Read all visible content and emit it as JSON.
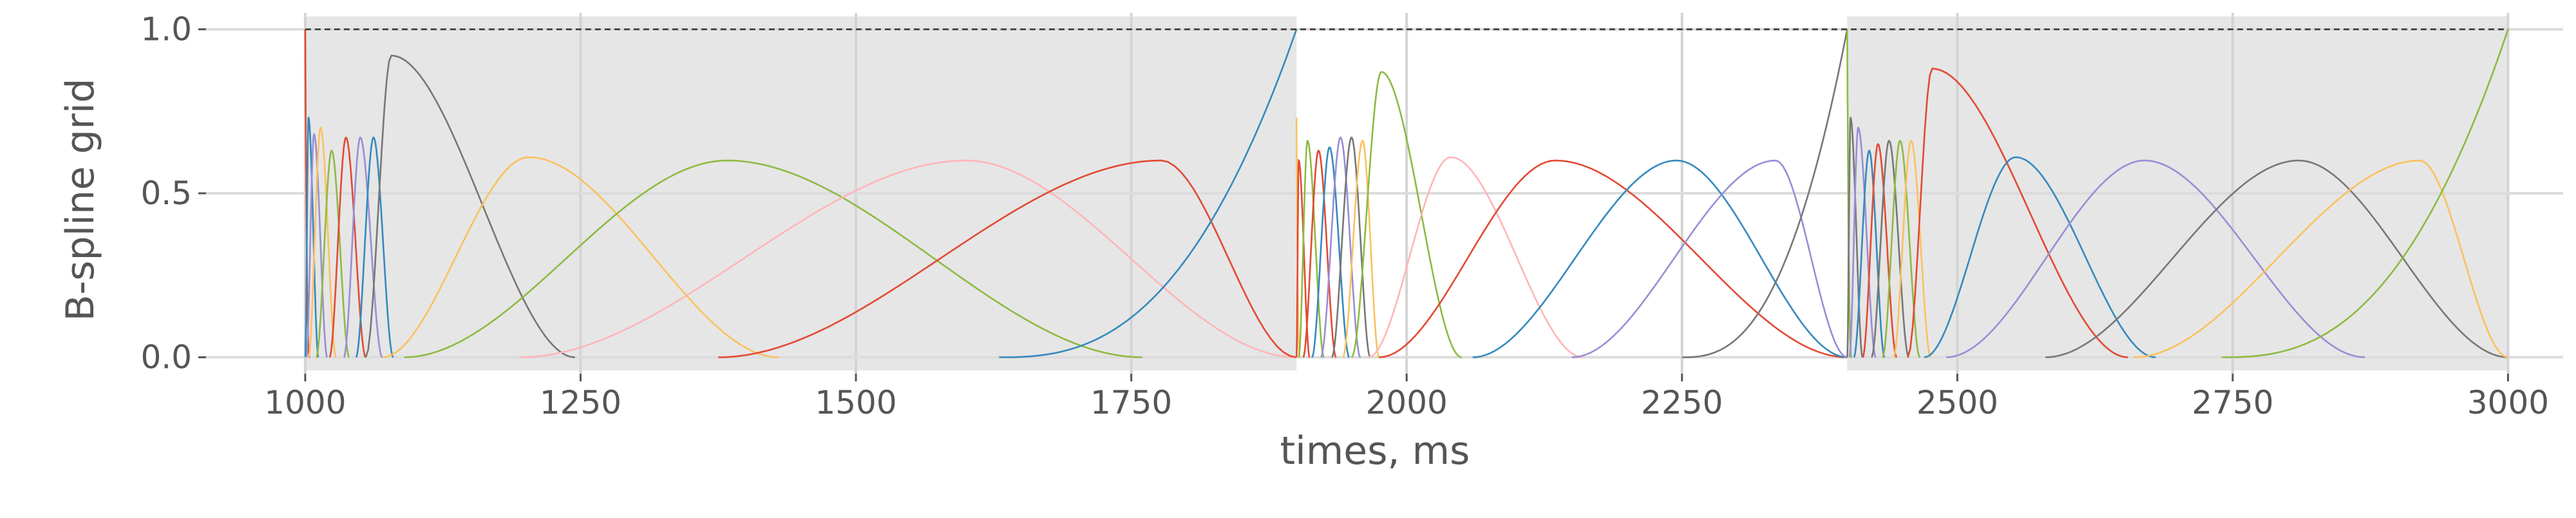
{
  "chart_data": {
    "type": "line",
    "title": "",
    "xlabel": "times, ms",
    "ylabel": "B-spline grid",
    "xlim": [
      910,
      3050
    ],
    "ylim": [
      -0.05,
      1.05
    ],
    "x_ticks": [
      1000,
      1250,
      1500,
      1750,
      2000,
      2250,
      2500,
      2750,
      3000
    ],
    "x_tick_labels": [
      "1000",
      "1250",
      "1500",
      "1750",
      "2000",
      "2250",
      "2500",
      "2750",
      "3000"
    ],
    "y_ticks": [
      0.0,
      0.5,
      1.0
    ],
    "y_tick_labels": [
      "0.0",
      "0.5",
      "1.0"
    ],
    "grid": true,
    "style": "ggplot-like",
    "reference_line": {
      "y": 1.0,
      "x": [
        1000,
        3000
      ],
      "style": "dashed",
      "color": "#333333"
    },
    "shaded_regions": [
      {
        "x": [
          1000,
          1900
        ],
        "color": "#e6e6e6"
      },
      {
        "x": [
          2400,
          3000
        ],
        "color": "#e6e6e6"
      }
    ],
    "colors": [
      "#e24a33",
      "#348abd",
      "#988ed5",
      "#777777",
      "#fbc15e",
      "#8eba42",
      "#ffb5b8"
    ],
    "series": [
      {
        "segment": 1,
        "color": "#e24a33",
        "shape": "start",
        "start": 1000,
        "end": 1004,
        "peak": 1000,
        "height": 1.0
      },
      {
        "segment": 1,
        "color": "#348abd",
        "shape": "bump",
        "start": 1000,
        "end": 1012,
        "peak": 1003,
        "height": 0.73
      },
      {
        "segment": 1,
        "color": "#988ed5",
        "shape": "bump",
        "start": 1001,
        "end": 1020,
        "peak": 1008,
        "height": 0.68
      },
      {
        "segment": 1,
        "color": "#fbc15e",
        "shape": "bump",
        "start": 1003,
        "end": 1028,
        "peak": 1014,
        "height": 0.7
      },
      {
        "segment": 1,
        "color": "#8eba42",
        "shape": "bump",
        "start": 1010,
        "end": 1040,
        "peak": 1024,
        "height": 0.63
      },
      {
        "segment": 1,
        "color": "#e24a33",
        "shape": "bump",
        "start": 1022,
        "end": 1055,
        "peak": 1037,
        "height": 0.67
      },
      {
        "segment": 1,
        "color": "#988ed5",
        "shape": "bump",
        "start": 1035,
        "end": 1070,
        "peak": 1050,
        "height": 0.67
      },
      {
        "segment": 1,
        "color": "#348abd",
        "shape": "bump",
        "start": 1046,
        "end": 1080,
        "peak": 1062,
        "height": 0.67
      },
      {
        "segment": 1,
        "color": "#777777",
        "shape": "bump",
        "start": 1055,
        "end": 1245,
        "peak": 1078,
        "height": 0.92
      },
      {
        "segment": 1,
        "color": "#fbc15e",
        "shape": "bump",
        "start": 1070,
        "end": 1430,
        "peak": 1203,
        "height": 0.61
      },
      {
        "segment": 1,
        "color": "#8eba42",
        "shape": "bump",
        "start": 1090,
        "end": 1760,
        "peak": 1383,
        "height": 0.6
      },
      {
        "segment": 1,
        "color": "#ffb5b8",
        "shape": "bump",
        "start": 1195,
        "end": 1900,
        "peak": 1600,
        "height": 0.6
      },
      {
        "segment": 1,
        "color": "#e24a33",
        "shape": "bump",
        "start": 1375,
        "end": 1900,
        "peak": 1777,
        "height": 0.6
      },
      {
        "segment": 1,
        "color": "#348abd",
        "shape": "end",
        "start": 1630,
        "end": 1900,
        "peak": 1900,
        "height": 1.0
      },
      {
        "segment": 2,
        "color": "#fbc15e",
        "shape": "start",
        "start": 1900,
        "end": 1903,
        "peak": 1900,
        "height": 0.73
      },
      {
        "segment": 2,
        "color": "#e24a33",
        "shape": "bump",
        "start": 1900,
        "end": 1912,
        "peak": 1902,
        "height": 0.6
      },
      {
        "segment": 2,
        "color": "#8eba42",
        "shape": "bump",
        "start": 1902,
        "end": 1925,
        "peak": 1910,
        "height": 0.66
      },
      {
        "segment": 2,
        "color": "#e24a33",
        "shape": "bump",
        "start": 1906,
        "end": 1936,
        "peak": 1920,
        "height": 0.63
      },
      {
        "segment": 2,
        "color": "#348abd",
        "shape": "bump",
        "start": 1914,
        "end": 1948,
        "peak": 1930,
        "height": 0.64
      },
      {
        "segment": 2,
        "color": "#988ed5",
        "shape": "bump",
        "start": 1922,
        "end": 1958,
        "peak": 1940,
        "height": 0.67
      },
      {
        "segment": 2,
        "color": "#777777",
        "shape": "bump",
        "start": 1932,
        "end": 1967,
        "peak": 1950,
        "height": 0.67
      },
      {
        "segment": 2,
        "color": "#fbc15e",
        "shape": "bump",
        "start": 1942,
        "end": 1975,
        "peak": 1960,
        "height": 0.66
      },
      {
        "segment": 2,
        "color": "#8eba42",
        "shape": "bump",
        "start": 1950,
        "end": 2050,
        "peak": 1977,
        "height": 0.87
      },
      {
        "segment": 2,
        "color": "#ffb5b8",
        "shape": "bump",
        "start": 1965,
        "end": 2160,
        "peak": 2040,
        "height": 0.61
      },
      {
        "segment": 2,
        "color": "#e24a33",
        "shape": "bump",
        "start": 1975,
        "end": 2400,
        "peak": 2135,
        "height": 0.6
      },
      {
        "segment": 2,
        "color": "#348abd",
        "shape": "bump",
        "start": 2060,
        "end": 2400,
        "peak": 2245,
        "height": 0.6
      },
      {
        "segment": 2,
        "color": "#988ed5",
        "shape": "bump",
        "start": 2150,
        "end": 2400,
        "peak": 2335,
        "height": 0.6
      },
      {
        "segment": 2,
        "color": "#777777",
        "shape": "end",
        "start": 2250,
        "end": 2400,
        "peak": 2400,
        "height": 1.0
      },
      {
        "segment": 3,
        "color": "#8eba42",
        "shape": "start",
        "start": 2400,
        "end": 2404,
        "peak": 2400,
        "height": 1.0
      },
      {
        "segment": 3,
        "color": "#777777",
        "shape": "bump",
        "start": 2400,
        "end": 2414,
        "peak": 2403,
        "height": 0.73
      },
      {
        "segment": 3,
        "color": "#988ed5",
        "shape": "bump",
        "start": 2402,
        "end": 2426,
        "peak": 2410,
        "height": 0.7
      },
      {
        "segment": 3,
        "color": "#348abd",
        "shape": "bump",
        "start": 2406,
        "end": 2434,
        "peak": 2420,
        "height": 0.63
      },
      {
        "segment": 3,
        "color": "#e24a33",
        "shape": "bump",
        "start": 2414,
        "end": 2445,
        "peak": 2428,
        "height": 0.65
      },
      {
        "segment": 3,
        "color": "#777777",
        "shape": "bump",
        "start": 2422,
        "end": 2456,
        "peak": 2438,
        "height": 0.66
      },
      {
        "segment": 3,
        "color": "#8eba42",
        "shape": "bump",
        "start": 2432,
        "end": 2466,
        "peak": 2448,
        "height": 0.66
      },
      {
        "segment": 3,
        "color": "#fbc15e",
        "shape": "bump",
        "start": 2442,
        "end": 2476,
        "peak": 2458,
        "height": 0.66
      },
      {
        "segment": 3,
        "color": "#e24a33",
        "shape": "bump",
        "start": 2455,
        "end": 2655,
        "peak": 2477,
        "height": 0.88
      },
      {
        "segment": 3,
        "color": "#348abd",
        "shape": "bump",
        "start": 2470,
        "end": 2680,
        "peak": 2553,
        "height": 0.61
      },
      {
        "segment": 3,
        "color": "#988ed5",
        "shape": "bump",
        "start": 2490,
        "end": 2870,
        "peak": 2670,
        "height": 0.6
      },
      {
        "segment": 3,
        "color": "#777777",
        "shape": "bump",
        "start": 2580,
        "end": 3000,
        "peak": 2810,
        "height": 0.6
      },
      {
        "segment": 3,
        "color": "#fbc15e",
        "shape": "bump",
        "start": 2660,
        "end": 3000,
        "peak": 2920,
        "height": 0.6
      },
      {
        "segment": 3,
        "color": "#8eba42",
        "shape": "end",
        "start": 2740,
        "end": 3000,
        "peak": 3000,
        "height": 1.0
      }
    ]
  }
}
